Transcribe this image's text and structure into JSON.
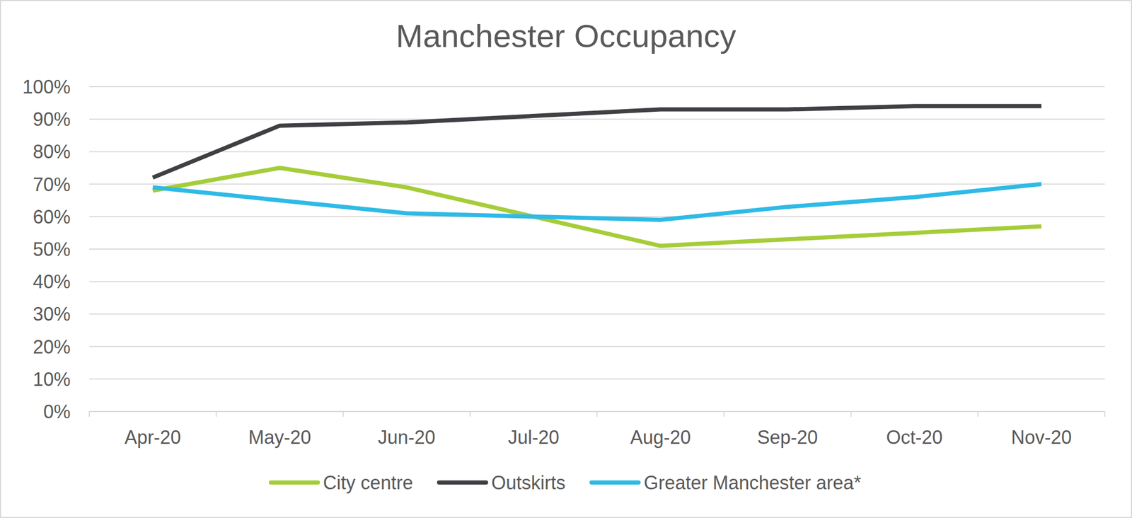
{
  "chart_data": {
    "type": "line",
    "title": "Manchester Occupancy",
    "categories": [
      "Apr-20",
      "May-20",
      "Jun-20",
      "Jul-20",
      "Aug-20",
      "Sep-20",
      "Oct-20",
      "Nov-20"
    ],
    "series": [
      {
        "name": "City centre",
        "color": "#a5cd39",
        "values": [
          68,
          75,
          69,
          60,
          51,
          53,
          55,
          57
        ]
      },
      {
        "name": "Outskirts",
        "color": "#404044",
        "values": [
          72,
          88,
          89,
          91,
          93,
          93,
          94,
          94
        ]
      },
      {
        "name": "Greater Manchester area*",
        "color": "#2fbae6",
        "values": [
          69,
          65,
          61,
          60,
          59,
          63,
          66,
          70
        ]
      }
    ],
    "ylim": [
      0,
      100
    ],
    "yticks": [
      {
        "value": 0,
        "label": "0%"
      },
      {
        "value": 10,
        "label": "10%"
      },
      {
        "value": 20,
        "label": "20%"
      },
      {
        "value": 30,
        "label": "30%"
      },
      {
        "value": 40,
        "label": "40%"
      },
      {
        "value": 50,
        "label": "50%"
      },
      {
        "value": 60,
        "label": "60%"
      },
      {
        "value": 70,
        "label": "70%"
      },
      {
        "value": 80,
        "label": "80%"
      },
      {
        "value": 90,
        "label": "90%"
      },
      {
        "value": 100,
        "label": "100%"
      }
    ],
    "grid": true,
    "legend": "bottom"
  }
}
